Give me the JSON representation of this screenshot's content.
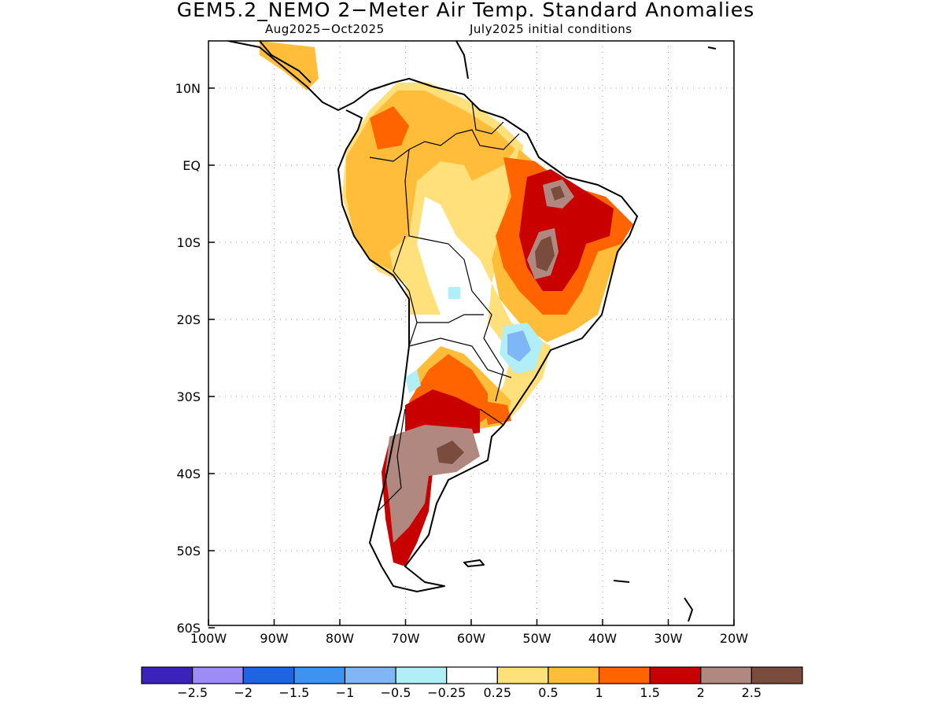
{
  "title": "GEM5.2_NEMO 2−Meter Air Temp. Standard Anomalies",
  "subtitle_left": "Aug2025−Oct2025",
  "subtitle_right": "July2025 initial conditions",
  "axes": {
    "x_ticks": [
      "100W",
      "90W",
      "80W",
      "70W",
      "60W",
      "50W",
      "40W",
      "30W",
      "20W"
    ],
    "y_ticks": [
      "10N",
      "EQ",
      "10S",
      "20S",
      "30S",
      "40S",
      "50S",
      "60S"
    ]
  },
  "colorbar": {
    "colors": [
      "#3b22b8",
      "#9d8cf4",
      "#1f64e0",
      "#3f93f0",
      "#7fb6f5",
      "#b0eef8",
      "#ffffff",
      "#ffe07a",
      "#ffbd3a",
      "#ff6400",
      "#c80000",
      "#b08880",
      "#7a4c3e"
    ],
    "labels": [
      "−2.5",
      "−2",
      "−1.5",
      "−1",
      "−0.5",
      "−0.25",
      "0.25",
      "0.5",
      "1",
      "1.5",
      "2",
      "2.5"
    ]
  },
  "regions": [
    {
      "name": "northern-south-america",
      "anomaly": "0.5 to 1.5"
    },
    {
      "name": "central-amazon",
      "anomaly": "-0.25 to 0.25"
    },
    {
      "name": "northeast-brazil",
      "anomaly": "1.5 to >2.5"
    },
    {
      "name": "paraguay-southern-brazil",
      "anomaly": "-1 to 0.25"
    },
    {
      "name": "central-argentina",
      "anomaly": "1 to 2"
    },
    {
      "name": "patagonia",
      "anomaly": "2 to >2.5"
    }
  ]
}
